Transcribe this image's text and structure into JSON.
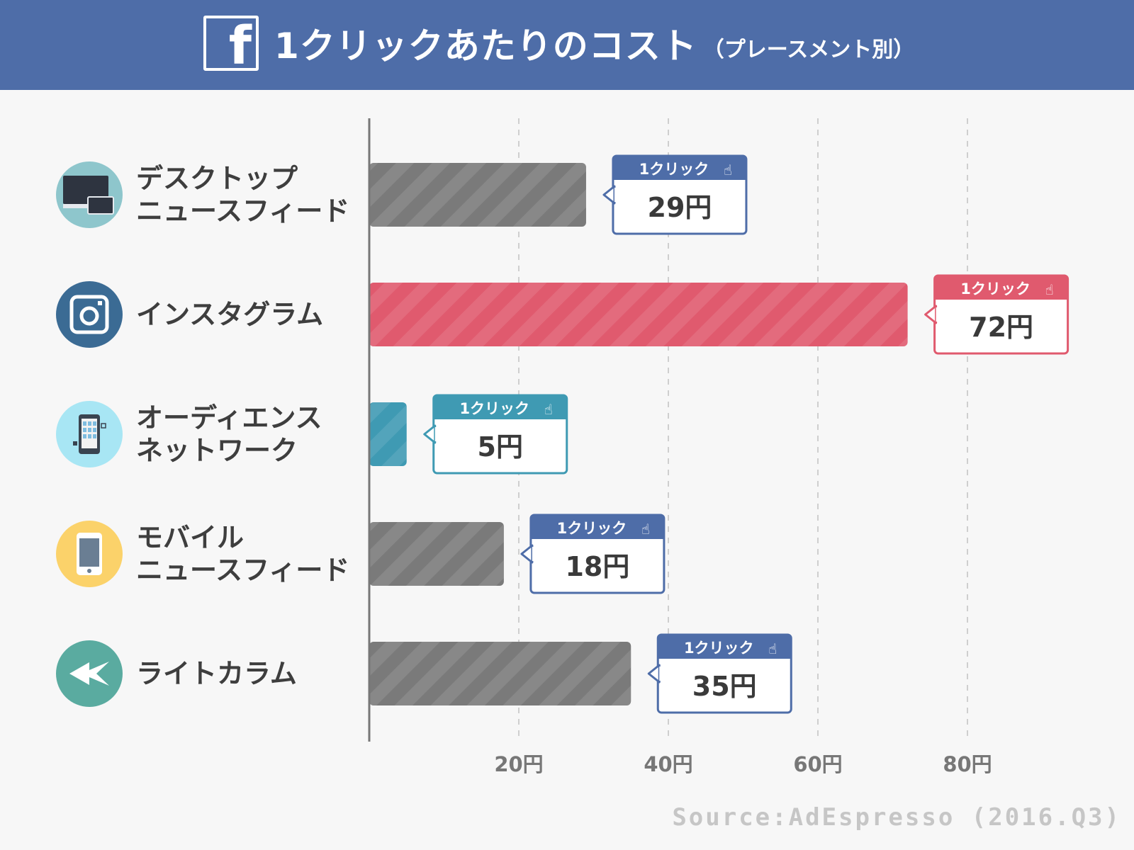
{
  "header": {
    "logo_letter": "f",
    "title": "1クリックあたりのコスト",
    "subtitle": "（プレースメント別）"
  },
  "chart_data": {
    "type": "bar",
    "orientation": "horizontal",
    "title": "1クリックあたりのコスト（プレースメント別）",
    "categories": [
      [
        "デスクトップ",
        "ニュースフィード"
      ],
      [
        "インスタグラム"
      ],
      [
        "オーディエンス",
        "ネットワーク"
      ],
      [
        "モバイル",
        "ニュースフィード"
      ],
      [
        "ライトカラム"
      ]
    ],
    "values": [
      29,
      72,
      5,
      18,
      35
    ],
    "value_labels": [
      "29円",
      "72円",
      "5円",
      "18円",
      "35円"
    ],
    "callout_header": "1クリック",
    "x_ticks": [
      20,
      40,
      60,
      80
    ],
    "x_tick_labels": [
      "20円",
      "40円",
      "60円",
      "80円"
    ],
    "xlim": [
      0,
      80
    ],
    "grid": "vertical dashed",
    "bar_colors": [
      "#7a7a7a",
      "#e05a6e",
      "#3f9ab3",
      "#7a7a7a",
      "#7a7a7a"
    ],
    "callout_colors": [
      "#4e6da8",
      "#e05a6e",
      "#3f9ab3",
      "#4e6da8",
      "#4e6da8"
    ],
    "icons": [
      "desktop-monitor-icon",
      "instagram-camera-icon",
      "mobile-app-network-icon",
      "smartphone-icon",
      "arrow-column-icon"
    ],
    "icon_colors": [
      "#8ec6cc",
      "#3b6b94",
      "#a8e6f4",
      "#fbd26a",
      "#5aaba0"
    ]
  },
  "source": "Source:AdEspresso (2016.Q3)"
}
